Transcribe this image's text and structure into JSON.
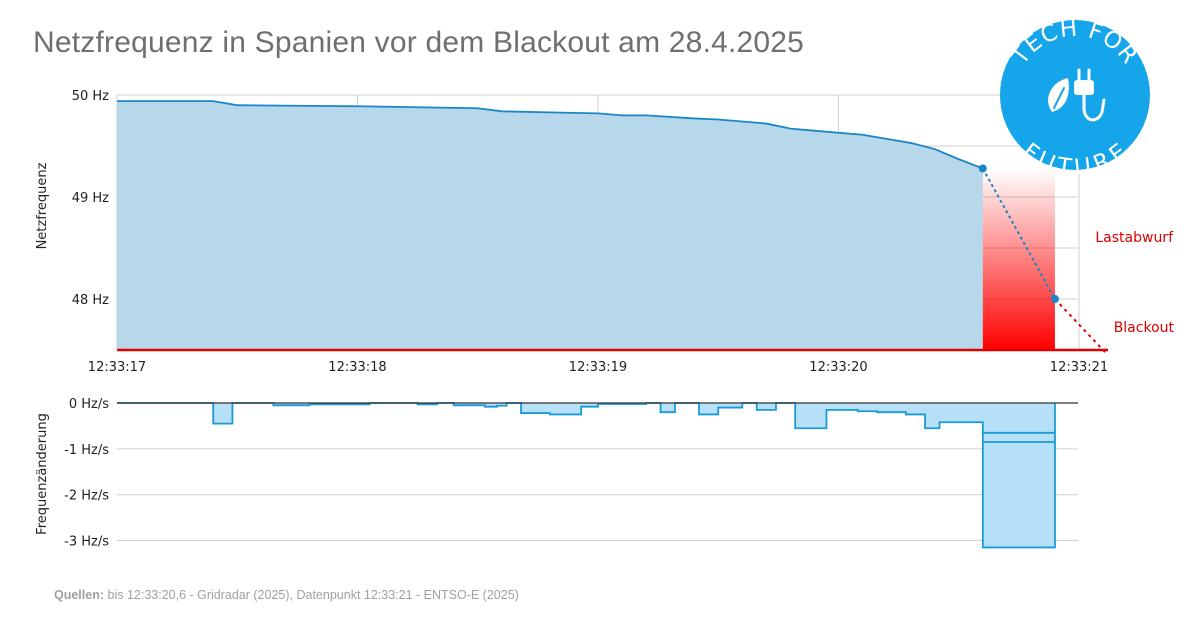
{
  "title": "Netzfrequenz in Spanien vor dem Blackout am 28.4.2025",
  "logo": {
    "line1": "TECH FOR",
    "line2": "FUTURE",
    "icon": "plug-leaf-icon"
  },
  "source": {
    "label": "Quellen:",
    "text": " bis 12:33:20,6 - Gridradar (2025), Datenpunkt 12:33:21 - ENTSO-E (2025)"
  },
  "colors": {
    "line": "#1a86c6",
    "fill_top": "#b7d7ea",
    "fill_bottom": "#b5e0f7",
    "red": "#e00000",
    "grid": "#cfcfcf"
  },
  "chart_data": [
    {
      "type": "area",
      "ylabel": "Netzfrequenz",
      "ylim": [
        47.5,
        50.0
      ],
      "xlim": [
        0,
        4.0
      ],
      "x_ticks": [
        "12:33:17",
        "12:33:18",
        "12:33:19",
        "12:33:20",
        "12:33:21"
      ],
      "y_ticks": [
        "50 Hz",
        "49 Hz",
        "48 Hz"
      ],
      "y_tick_values": [
        50,
        49,
        48
      ],
      "grid": true,
      "x": [
        0,
        0.4,
        0.5,
        1.0,
        1.5,
        1.6,
        1.8,
        2.0,
        2.1,
        2.2,
        2.4,
        2.5,
        2.6,
        2.7,
        2.8,
        2.9,
        3.0,
        3.1,
        3.2,
        3.3,
        3.4,
        3.5,
        3.6
      ],
      "y": [
        49.94,
        49.94,
        49.9,
        49.89,
        49.87,
        49.84,
        49.83,
        49.82,
        49.8,
        49.8,
        49.77,
        49.76,
        49.74,
        49.72,
        49.67,
        49.65,
        49.63,
        49.61,
        49.57,
        49.53,
        49.47,
        49.37,
        49.28
      ],
      "points": [
        {
          "x": 3.6,
          "y": 49.28
        },
        {
          "x": 3.9,
          "y": 48.0
        }
      ],
      "extrapolation": {
        "x": [
          3.6,
          3.9,
          4.12
        ],
        "y": [
          49.28,
          48.0,
          47.45
        ]
      },
      "shaded_region": {
        "x": [
          3.6,
          3.9
        ],
        "label": "Lastabwurf"
      },
      "annotations": [
        "Lastabwurf",
        "Blackout"
      ],
      "red_baseline": 47.5
    },
    {
      "type": "area",
      "ylabel": "Frequenzänderung",
      "ylim": [
        -3.25,
        0.0
      ],
      "xlim": [
        0,
        4.0
      ],
      "y_ticks": [
        "0 Hz/s",
        "-1 Hz/s",
        "-2 Hz/s",
        "-3 Hz/s"
      ],
      "y_tick_values": [
        0,
        -1,
        -2,
        -3
      ],
      "grid": true,
      "step_x": [
        0,
        0.4,
        0.48,
        0.65,
        0.8,
        1.05,
        1.25,
        1.33,
        1.4,
        1.53,
        1.58,
        1.62,
        1.68,
        1.8,
        1.93,
        2.0,
        2.2,
        2.26,
        2.32,
        2.42,
        2.5,
        2.6,
        2.66,
        2.74,
        2.82,
        2.95,
        3.08,
        3.16,
        3.28,
        3.36,
        3.42,
        3.6,
        3.9
      ],
      "step_y": [
        0,
        -0.45,
        0,
        -0.05,
        -0.03,
        0,
        -0.03,
        0.0,
        -0.05,
        -0.08,
        -0.06,
        0.0,
        -0.22,
        -0.25,
        -0.08,
        -0.02,
        0.0,
        -0.2,
        0.0,
        -0.25,
        -0.1,
        0.0,
        -0.15,
        0.0,
        -0.55,
        -0.15,
        -0.18,
        -0.2,
        -0.25,
        -0.55,
        -0.42,
        -0.85,
        -0.65
      ]
    }
  ]
}
